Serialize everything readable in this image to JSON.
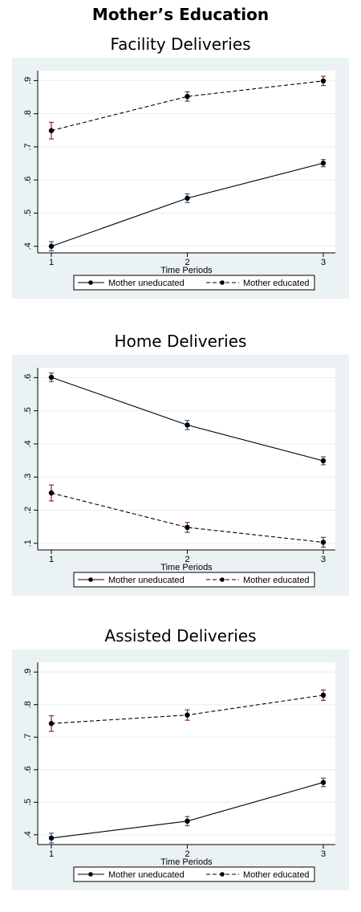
{
  "header": {
    "title": "Mother’s Education"
  },
  "colors": {
    "panel_bg": "#eaf2f3",
    "plot_bg": "#ffffff",
    "ci_uneducated": "#2d5f8a",
    "ci_educated": "#8b2a2a",
    "line": "#000000",
    "grid": "#e9eeee"
  },
  "chart_data": [
    {
      "type": "line",
      "title": "Facility Deliveries",
      "xlabel": "Time Periods",
      "ylabel": "",
      "categories": [
        1,
        2,
        3
      ],
      "x_ticks": [
        "1",
        "2",
        "3"
      ],
      "ylim": [
        0.38,
        0.93
      ],
      "y_ticks": [
        ".4",
        ".5",
        ".6",
        ".7",
        ".8",
        ".9"
      ],
      "grid": true,
      "legend_position": "bottom",
      "series": [
        {
          "name": "Mother uneducated",
          "style": "solid",
          "values": [
            0.4,
            0.545,
            0.651
          ],
          "ci_low": [
            0.386,
            0.532,
            0.64
          ],
          "ci_high": [
            0.414,
            0.558,
            0.662
          ]
        },
        {
          "name": "Mother educated",
          "style": "dashed",
          "values": [
            0.749,
            0.852,
            0.899
          ],
          "ci_low": [
            0.724,
            0.838,
            0.885
          ],
          "ci_high": [
            0.774,
            0.866,
            0.913
          ]
        }
      ]
    },
    {
      "type": "line",
      "title": "Home Deliveries",
      "xlabel": "Time Periods",
      "ylabel": "",
      "categories": [
        1,
        2,
        3
      ],
      "x_ticks": [
        "1",
        "2",
        "3"
      ],
      "ylim": [
        0.08,
        0.63
      ],
      "y_ticks": [
        ".1",
        ".2",
        ".3",
        ".4",
        ".5",
        ".6"
      ],
      "grid": true,
      "legend_position": "bottom",
      "series": [
        {
          "name": "Mother uneducated",
          "style": "solid",
          "values": [
            0.601,
            0.457,
            0.349
          ],
          "ci_low": [
            0.588,
            0.443,
            0.337
          ],
          "ci_high": [
            0.614,
            0.471,
            0.361
          ]
        },
        {
          "name": "Mother educated",
          "style": "dashed",
          "values": [
            0.252,
            0.148,
            0.103
          ],
          "ci_low": [
            0.228,
            0.133,
            0.088
          ],
          "ci_high": [
            0.276,
            0.163,
            0.118
          ]
        }
      ]
    },
    {
      "type": "line",
      "title": "Assisted Deliveries",
      "xlabel": "Time Periods",
      "ylabel": "",
      "categories": [
        1,
        2,
        3
      ],
      "x_ticks": [
        "1",
        "2",
        "3"
      ],
      "ylim": [
        0.37,
        0.93
      ],
      "y_ticks": [
        ".4",
        ".5",
        ".6",
        ".7",
        ".8",
        ".9"
      ],
      "grid": true,
      "legend_position": "bottom",
      "series": [
        {
          "name": "Mother uneducated",
          "style": "solid",
          "values": [
            0.39,
            0.442,
            0.561
          ],
          "ci_low": [
            0.375,
            0.428,
            0.548
          ],
          "ci_high": [
            0.405,
            0.456,
            0.574
          ]
        },
        {
          "name": "Mother educated",
          "style": "dashed",
          "values": [
            0.742,
            0.768,
            0.829
          ],
          "ci_low": [
            0.718,
            0.752,
            0.813
          ],
          "ci_high": [
            0.766,
            0.784,
            0.845
          ]
        }
      ]
    }
  ]
}
